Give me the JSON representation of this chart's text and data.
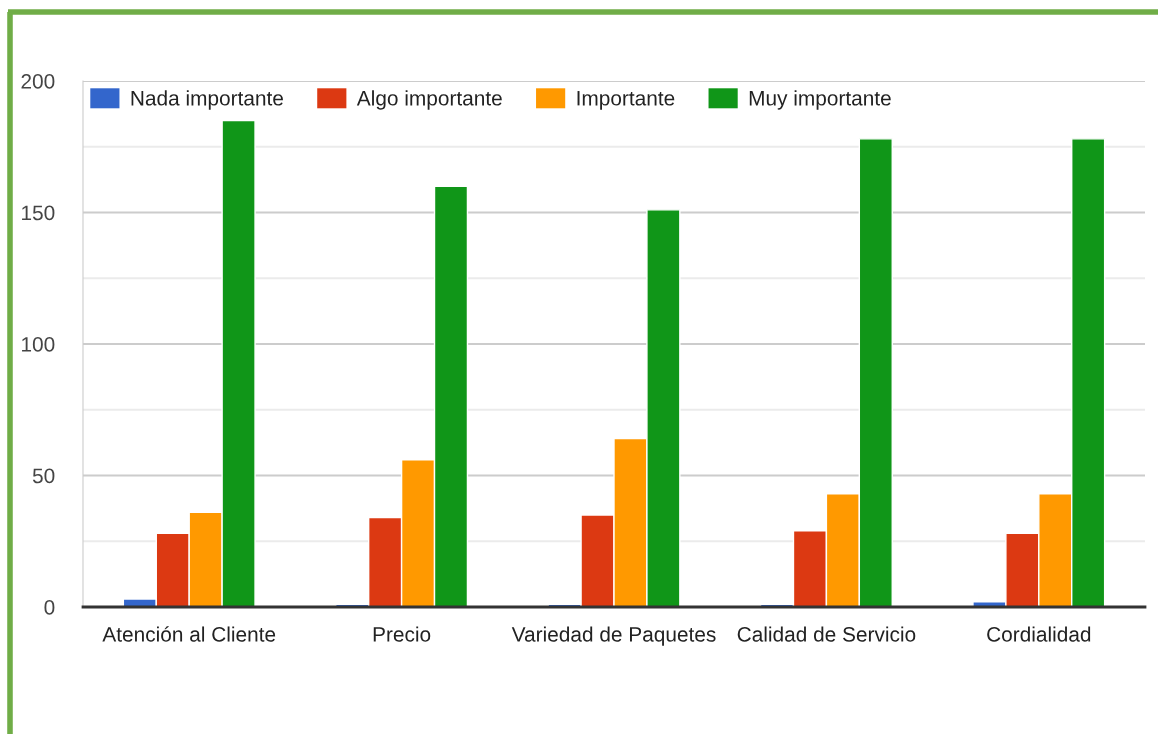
{
  "chart_data": {
    "type": "bar",
    "categories": [
      "Atención al Cliente",
      "Precio",
      "Variedad de Paquetes",
      "Calidad de Servicio",
      "Cordialidad"
    ],
    "series": [
      {
        "name": "Nada importante",
        "color": "#3366cc",
        "values": [
          3,
          1,
          1,
          1,
          2
        ]
      },
      {
        "name": "Algo importante",
        "color": "#dc3912",
        "values": [
          28,
          34,
          35,
          29,
          28
        ]
      },
      {
        "name": "Importante",
        "color": "#ff9900",
        "values": [
          36,
          56,
          64,
          43,
          43
        ]
      },
      {
        "name": "Muy importante",
        "color": "#109618",
        "values": [
          185,
          160,
          151,
          178,
          178
        ]
      }
    ],
    "ylim": [
      0,
      200
    ],
    "yticks": [
      0,
      {
        "value": 25,
        "label": null
      },
      50,
      {
        "value": 75,
        "label": null
      },
      100,
      {
        "value": 125,
        "label": null
      },
      150,
      {
        "value": 175,
        "label": null
      },
      200
    ],
    "grid": "y",
    "legend": "top left"
  }
}
